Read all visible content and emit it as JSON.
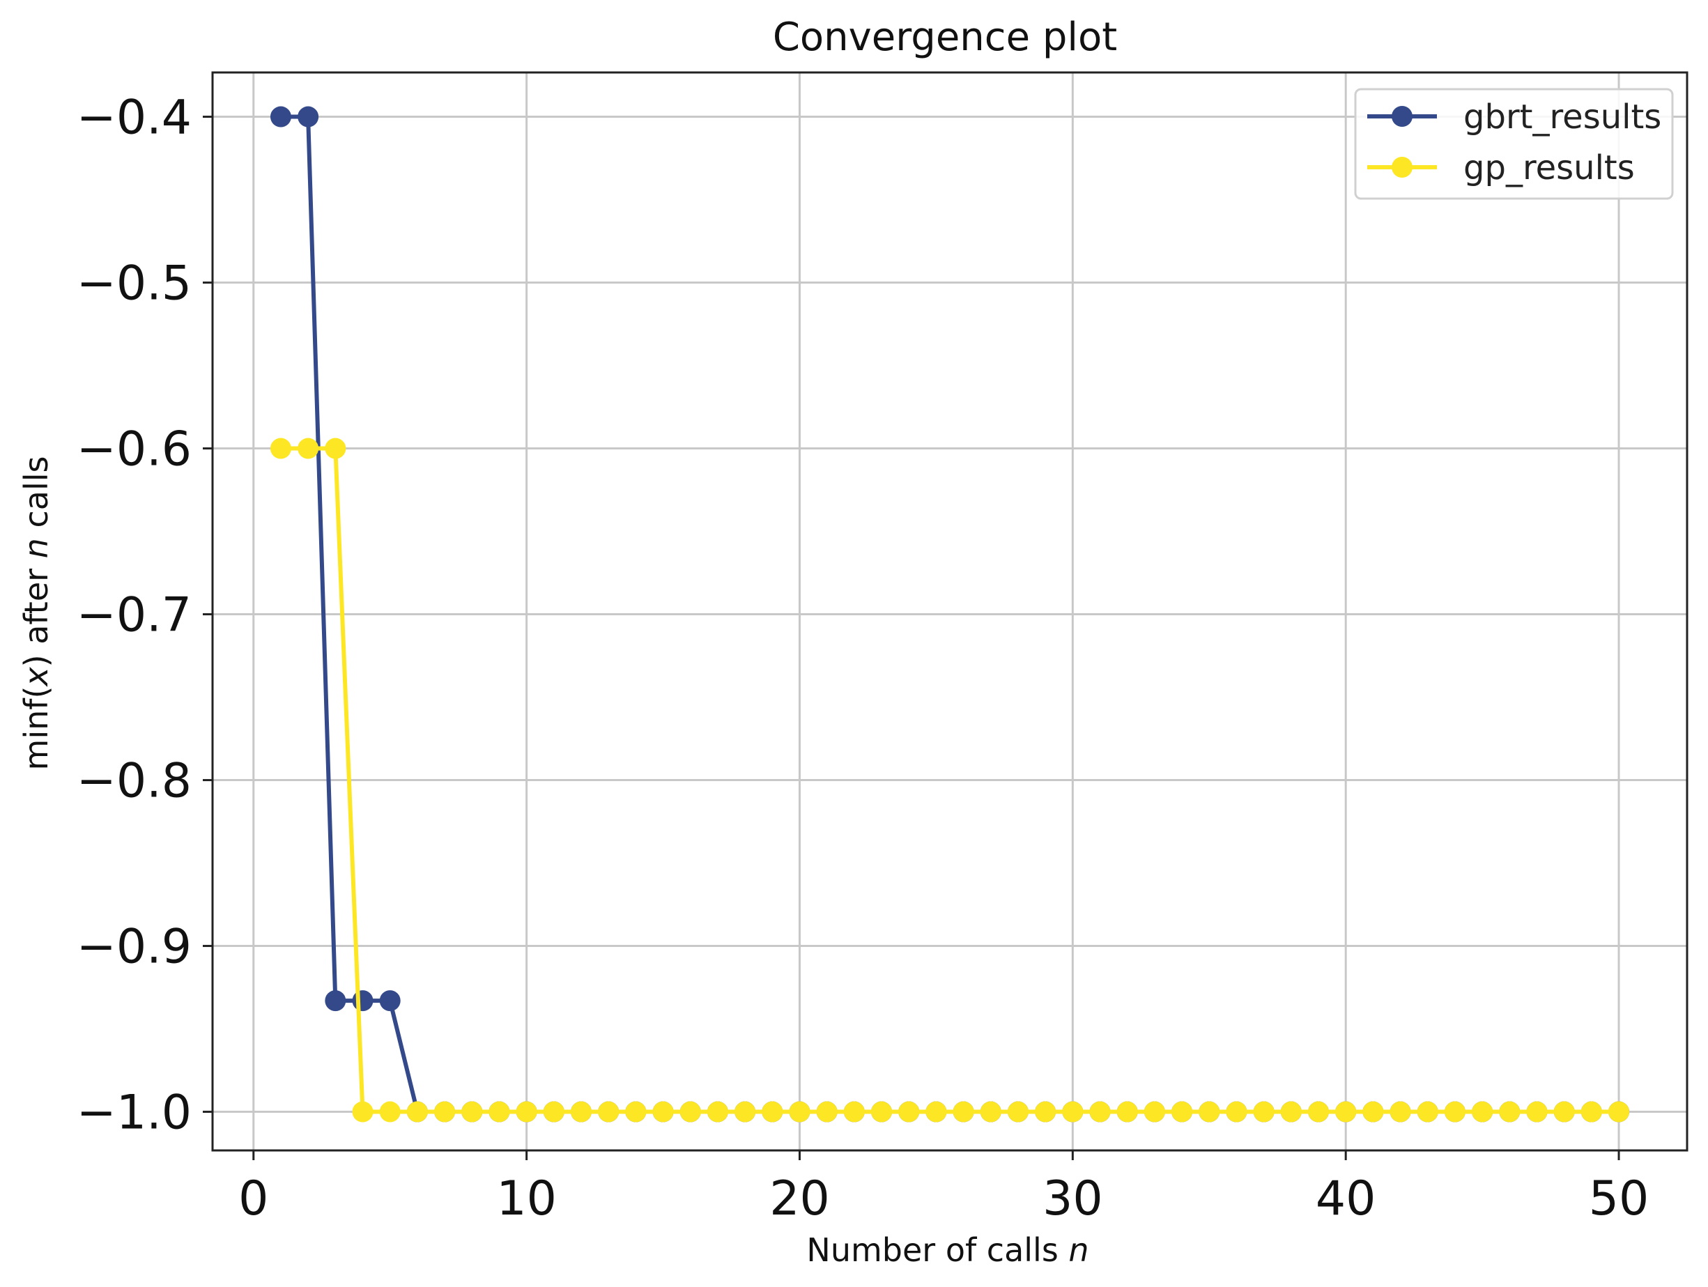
{
  "chart_data": {
    "type": "line",
    "title": "Convergence plot",
    "xlabel_prefix": "Number of calls ",
    "xlabel_var": "n",
    "ylabel_parts": [
      "min",
      "f",
      "(",
      "x",
      ")",
      " after ",
      "n",
      " calls"
    ],
    "xlim": [
      -1.5,
      52.5
    ],
    "ylim": [
      -1.0233,
      -0.3733
    ],
    "xticks": [
      0,
      10,
      20,
      30,
      40,
      50
    ],
    "yticks": [
      -0.4,
      -0.5,
      -0.6,
      -0.7,
      -0.8,
      -0.9,
      -1.0
    ],
    "xtick_labels": [
      "0",
      "10",
      "20",
      "30",
      "40",
      "50"
    ],
    "ytick_labels": [
      "−0.4",
      "−0.5",
      "−0.6",
      "−0.7",
      "−0.8",
      "−0.9",
      "−1.0"
    ],
    "grid": true,
    "legend_position": "top-right",
    "series": [
      {
        "name": "gbrt_results",
        "color": "#33498a",
        "marker": "circle",
        "x": [
          1,
          2,
          3,
          4,
          5,
          6,
          7,
          8,
          9,
          10,
          11,
          12,
          13,
          14,
          15,
          16,
          17,
          18,
          19,
          20,
          21,
          22,
          23,
          24,
          25,
          26,
          27,
          28,
          29,
          30,
          31,
          32,
          33,
          34,
          35,
          36,
          37,
          38,
          39,
          40,
          41,
          42,
          43,
          44,
          45,
          46,
          47,
          48,
          49,
          50
        ],
        "y": [
          -0.4,
          -0.4,
          -0.933,
          -0.933,
          -0.933,
          -1.0,
          -1.0,
          -1.0,
          -1.0,
          -1.0,
          -1.0,
          -1.0,
          -1.0,
          -1.0,
          -1.0,
          -1.0,
          -1.0,
          -1.0,
          -1.0,
          -1.0,
          -1.0,
          -1.0,
          -1.0,
          -1.0,
          -1.0,
          -1.0,
          -1.0,
          -1.0,
          -1.0,
          -1.0,
          -1.0,
          -1.0,
          -1.0,
          -1.0,
          -1.0,
          -1.0,
          -1.0,
          -1.0,
          -1.0,
          -1.0,
          -1.0,
          -1.0,
          -1.0,
          -1.0,
          -1.0,
          -1.0,
          -1.0,
          -1.0,
          -1.0,
          -1.0
        ]
      },
      {
        "name": "gp_results",
        "color": "#fde725",
        "marker": "circle",
        "x": [
          1,
          2,
          3,
          4,
          5,
          6,
          7,
          8,
          9,
          10,
          11,
          12,
          13,
          14,
          15,
          16,
          17,
          18,
          19,
          20,
          21,
          22,
          23,
          24,
          25,
          26,
          27,
          28,
          29,
          30,
          31,
          32,
          33,
          34,
          35,
          36,
          37,
          38,
          39,
          40,
          41,
          42,
          43,
          44,
          45,
          46,
          47,
          48,
          49,
          50
        ],
        "y": [
          -0.6,
          -0.6,
          -0.6,
          -1.0,
          -1.0,
          -1.0,
          -1.0,
          -1.0,
          -1.0,
          -1.0,
          -1.0,
          -1.0,
          -1.0,
          -1.0,
          -1.0,
          -1.0,
          -1.0,
          -1.0,
          -1.0,
          -1.0,
          -1.0,
          -1.0,
          -1.0,
          -1.0,
          -1.0,
          -1.0,
          -1.0,
          -1.0,
          -1.0,
          -1.0,
          -1.0,
          -1.0,
          -1.0,
          -1.0,
          -1.0,
          -1.0,
          -1.0,
          -1.0,
          -1.0,
          -1.0,
          -1.0,
          -1.0,
          -1.0,
          -1.0,
          -1.0,
          -1.0,
          -1.0,
          -1.0,
          -1.0,
          -1.0
        ]
      }
    ]
  }
}
